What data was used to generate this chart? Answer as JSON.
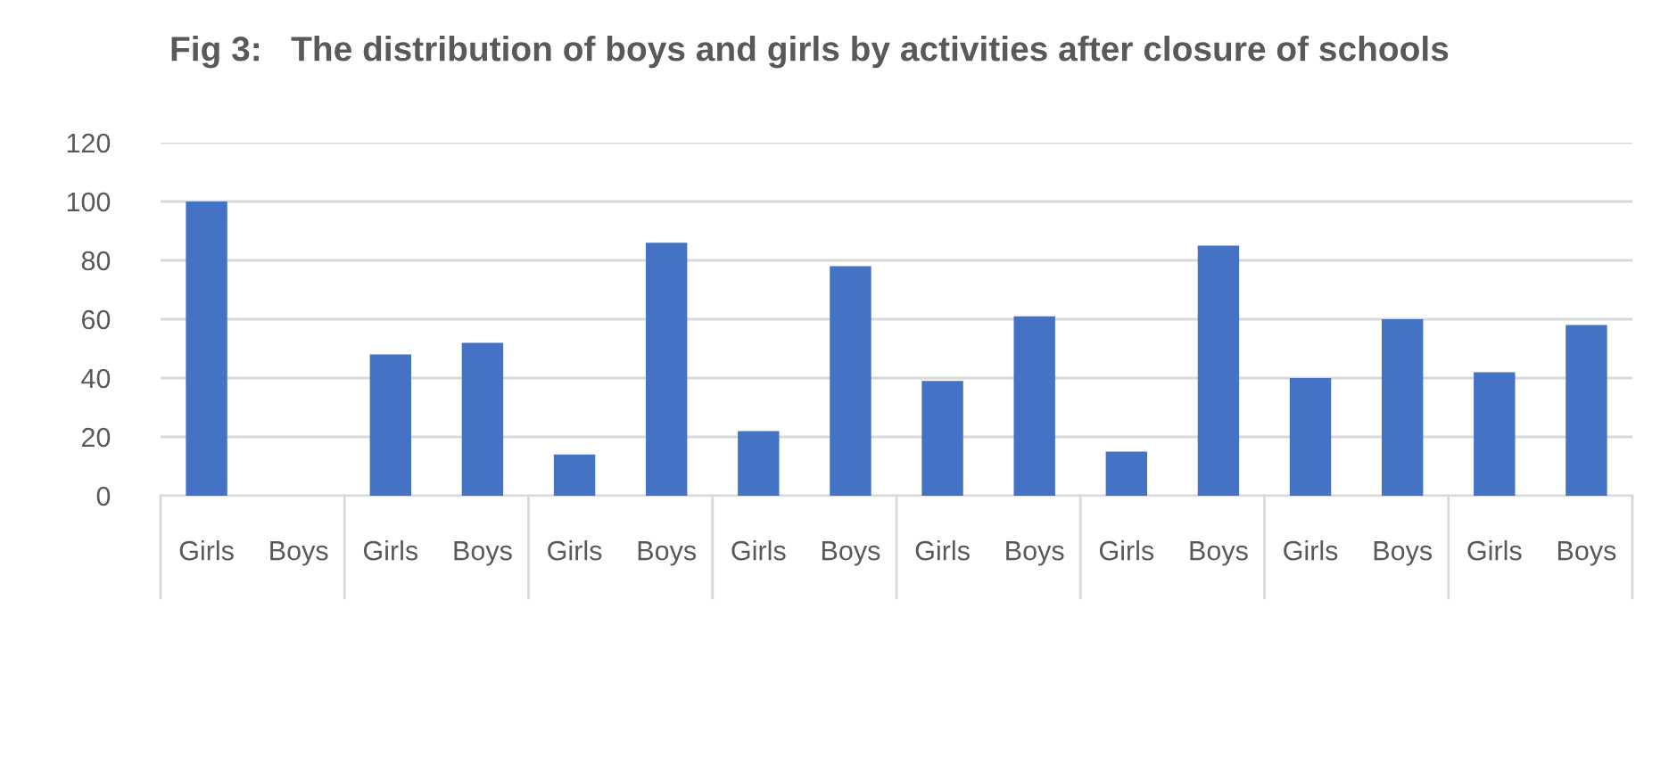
{
  "chart_data": {
    "type": "bar",
    "title": "Fig 3:   The distribution of boys and girls by activities after closure of schools",
    "categories": [
      "Girls",
      "Boys",
      "Girls",
      "Boys",
      "Girls",
      "Boys",
      "Girls",
      "Boys",
      "Girls",
      "Boys",
      "Girls",
      "Boys",
      "Girls",
      "Boys",
      "Girls",
      "Boys"
    ],
    "values": [
      100,
      0,
      48,
      52,
      14,
      86,
      22,
      78,
      39,
      61,
      15,
      85,
      40,
      60,
      42,
      58
    ],
    "color": "#4472c4",
    "ylim": [
      0,
      120
    ],
    "yticks": [
      0,
      20,
      40,
      60,
      80,
      100,
      120
    ],
    "grid": "y"
  }
}
